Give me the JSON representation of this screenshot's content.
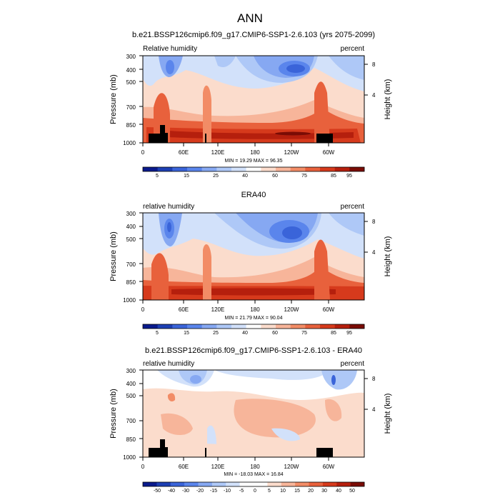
{
  "figure": {
    "title": "ANN"
  },
  "chart_data": [
    {
      "type": "heatmap",
      "title": "b.e21.BSSP126cmip6.f09_g17.CMIP6-SSP1-2.6.103 (yrs 2075-2099)",
      "left_label": "Relative humidity",
      "right_label": "percent",
      "ylabel": "Pressure (mb)",
      "y2label": "Height (km)",
      "xticks": [
        "0",
        "60E",
        "120E",
        "180",
        "120W",
        "60W"
      ],
      "xtick_values": [
        0,
        60,
        120,
        180,
        240,
        300
      ],
      "xlim": [
        0,
        360
      ],
      "yticks": [
        "300",
        "400",
        "500",
        "700",
        "850",
        "1000"
      ],
      "ytick_values": [
        300,
        400,
        500,
        700,
        850,
        1000
      ],
      "y2ticks": [
        "8",
        "4"
      ],
      "y2tick_values": [
        8,
        4
      ],
      "stats": "MIN = 19.29  MAX = 96.35",
      "colorbar": {
        "labels": [
          "5",
          "15",
          "25",
          "40",
          "60",
          "75",
          "85",
          "95"
        ],
        "colors": [
          "#0a1a8c",
          "#1d3fb3",
          "#3a64d9",
          "#5a85ec",
          "#86a8f2",
          "#aec8f7",
          "#d2e1fa",
          "#ffffff",
          "#fbdccc",
          "#f7b59a",
          "#f28c66",
          "#e8613c",
          "#d63a1c",
          "#b51f0d",
          "#7a0c05"
        ]
      },
      "features": {
        "dry_maxima": [
          {
            "lon": 20,
            "p": 390
          },
          {
            "lon": 225,
            "p": 400
          },
          {
            "lon": 340,
            "p": 400
          }
        ],
        "moist_boundary_layer": {
          "p_top": 800,
          "max_percent": 96.35
        },
        "land_masks_lon_ranges": [
          [
            5,
            22
          ],
          [
            22,
            29
          ],
          [
            88,
            90
          ],
          [
            245,
            259
          ]
        ]
      }
    },
    {
      "type": "heatmap",
      "title": "ERA40",
      "left_label": "relative humidity",
      "right_label": "percent",
      "ylabel": "Pressure (mb)",
      "y2label": "Height (km)",
      "xticks": [
        "0",
        "60E",
        "120E",
        "180",
        "120W",
        "60W"
      ],
      "xtick_values": [
        0,
        60,
        120,
        180,
        240,
        300
      ],
      "xlim": [
        0,
        360
      ],
      "yticks": [
        "300",
        "400",
        "500",
        "700",
        "850",
        "1000"
      ],
      "ytick_values": [
        300,
        400,
        500,
        700,
        850,
        1000
      ],
      "y2ticks": [
        "8",
        "4"
      ],
      "y2tick_values": [
        8,
        4
      ],
      "stats": "MIN = 21.79  MAX = 90.04",
      "colorbar": {
        "labels": [
          "5",
          "15",
          "25",
          "40",
          "60",
          "75",
          "85",
          "95"
        ],
        "colors": [
          "#0a1a8c",
          "#1d3fb3",
          "#3a64d9",
          "#5a85ec",
          "#86a8f2",
          "#aec8f7",
          "#d2e1fa",
          "#ffffff",
          "#fbdccc",
          "#f7b59a",
          "#f28c66",
          "#e8613c",
          "#d63a1c",
          "#b51f0d",
          "#7a0c05"
        ]
      },
      "features": {
        "dry_maxima": [
          {
            "lon": 30,
            "p": 400
          },
          {
            "lon": 225,
            "p": 440
          }
        ],
        "moist_boundary_layer": {
          "p_top": 820,
          "max_percent": 90.04
        },
        "land_masks_lon_ranges": []
      }
    },
    {
      "type": "heatmap",
      "title": "b.e21.BSSP126cmip6.f09_g17.CMIP6-SSP1-2.6.103 - ERA40",
      "left_label": "relative humidity",
      "right_label": "percent",
      "ylabel": "Pressure (mb)",
      "y2label": "Height (km)",
      "xticks": [
        "0",
        "60E",
        "120E",
        "180",
        "120W",
        "60W"
      ],
      "xtick_values": [
        0,
        60,
        120,
        180,
        240,
        300
      ],
      "xlim": [
        0,
        360
      ],
      "yticks": [
        "300",
        "400",
        "500",
        "700",
        "850",
        "1000"
      ],
      "ytick_values": [
        300,
        400,
        500,
        700,
        850,
        1000
      ],
      "y2ticks": [
        "8",
        "4"
      ],
      "y2tick_values": [
        8,
        4
      ],
      "stats": "MIN = -18.03  MAX = 16.84",
      "colorbar": {
        "labels": [
          "-50",
          "-40",
          "-30",
          "-20",
          "-15",
          "-10",
          "-5",
          "0",
          "5",
          "10",
          "15",
          "20",
          "30",
          "40",
          "50"
        ],
        "colors": [
          "#0a1a8c",
          "#1d3fb3",
          "#3a64d9",
          "#5a85ec",
          "#86a8f2",
          "#aec8f7",
          "#d2e1fa",
          "#ffffff",
          "#ffffff",
          "#fbdccc",
          "#f7b59a",
          "#f28c66",
          "#e8613c",
          "#d63a1c",
          "#b51f0d",
          "#7a0c05"
        ]
      },
      "features": {
        "negative_anomalies": [
          {
            "lon": 60,
            "p": 400
          },
          {
            "lon": 100,
            "p": 430
          },
          {
            "lon": 300,
            "p": 420
          }
        ],
        "positive_anomalies": [
          {
            "lon": 230,
            "p": 600
          },
          {
            "lon": 130,
            "p": 550
          }
        ],
        "land_masks_lon_ranges": [
          [
            5,
            22
          ],
          [
            22,
            29
          ],
          [
            88,
            90
          ],
          [
            245,
            259
          ]
        ]
      }
    }
  ]
}
